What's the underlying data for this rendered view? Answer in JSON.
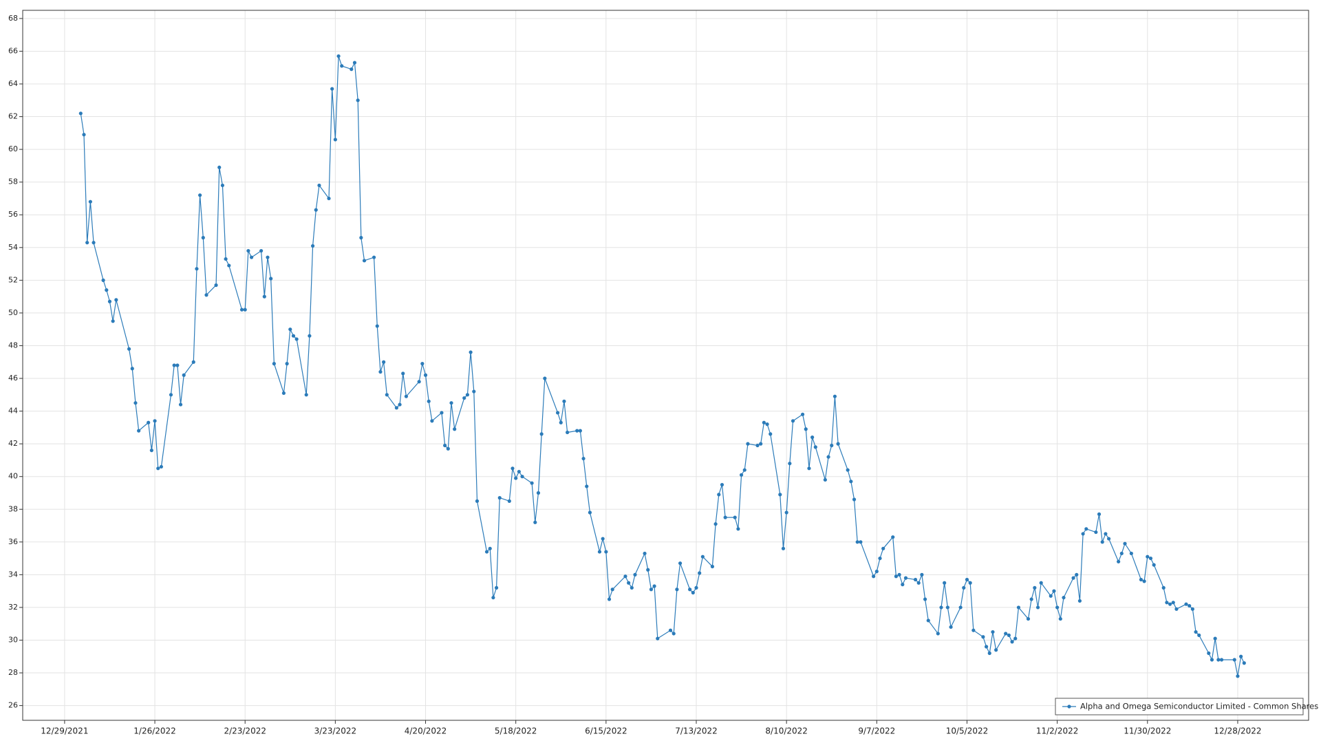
{
  "chart_data": {
    "type": "line",
    "x": [
      "1/3/2022",
      "1/4/2022",
      "1/5/2022",
      "1/6/2022",
      "1/7/2022",
      "1/10/2022",
      "1/11/2022",
      "1/12/2022",
      "1/13/2022",
      "1/14/2022",
      "1/18/2022",
      "1/19/2022",
      "1/20/2022",
      "1/21/2022",
      "1/24/2022",
      "1/25/2022",
      "1/26/2022",
      "1/27/2022",
      "1/28/2022",
      "1/31/2022",
      "2/1/2022",
      "2/2/2022",
      "2/3/2022",
      "2/4/2022",
      "2/7/2022",
      "2/8/2022",
      "2/9/2022",
      "2/10/2022",
      "2/11/2022",
      "2/14/2022",
      "2/15/2022",
      "2/16/2022",
      "2/17/2022",
      "2/18/2022",
      "2/22/2022",
      "2/23/2022",
      "2/24/2022",
      "2/25/2022",
      "2/28/2022",
      "3/1/2022",
      "3/2/2022",
      "3/3/2022",
      "3/4/2022",
      "3/7/2022",
      "3/8/2022",
      "3/9/2022",
      "3/10/2022",
      "3/11/2022",
      "3/14/2022",
      "3/15/2022",
      "3/16/2022",
      "3/17/2022",
      "3/18/2022",
      "3/21/2022",
      "3/22/2022",
      "3/23/2022",
      "3/24/2022",
      "3/25/2022",
      "3/28/2022",
      "3/29/2022",
      "3/30/2022",
      "3/31/2022",
      "4/1/2022",
      "4/4/2022",
      "4/5/2022",
      "4/6/2022",
      "4/7/2022",
      "4/8/2022",
      "4/11/2022",
      "4/12/2022",
      "4/13/2022",
      "4/14/2022",
      "4/18/2022",
      "4/19/2022",
      "4/20/2022",
      "4/21/2022",
      "4/22/2022",
      "4/25/2022",
      "4/26/2022",
      "4/27/2022",
      "4/28/2022",
      "4/29/2022",
      "5/2/2022",
      "5/3/2022",
      "5/4/2022",
      "5/5/2022",
      "5/6/2022",
      "5/9/2022",
      "5/10/2022",
      "5/11/2022",
      "5/12/2022",
      "5/13/2022",
      "5/16/2022",
      "5/17/2022",
      "5/18/2022",
      "5/19/2022",
      "5/20/2022",
      "5/23/2022",
      "5/24/2022",
      "5/25/2022",
      "5/26/2022",
      "5/27/2022",
      "5/31/2022",
      "6/1/2022",
      "6/2/2022",
      "6/3/2022",
      "6/6/2022",
      "6/7/2022",
      "6/8/2022",
      "6/9/2022",
      "6/10/2022",
      "6/13/2022",
      "6/14/2022",
      "6/15/2022",
      "6/16/2022",
      "6/17/2022",
      "6/21/2022",
      "6/22/2022",
      "6/23/2022",
      "6/24/2022",
      "6/27/2022",
      "6/28/2022",
      "6/29/2022",
      "6/30/2022",
      "7/1/2022",
      "7/5/2022",
      "7/6/2022",
      "7/7/2022",
      "7/8/2022",
      "7/11/2022",
      "7/12/2022",
      "7/13/2022",
      "7/14/2022",
      "7/15/2022",
      "7/18/2022",
      "7/19/2022",
      "7/20/2022",
      "7/21/2022",
      "7/22/2022",
      "7/25/2022",
      "7/26/2022",
      "7/27/2022",
      "7/28/2022",
      "7/29/2022",
      "8/1/2022",
      "8/2/2022",
      "8/3/2022",
      "8/4/2022",
      "8/5/2022",
      "8/8/2022",
      "8/9/2022",
      "8/10/2022",
      "8/11/2022",
      "8/12/2022",
      "8/15/2022",
      "8/16/2022",
      "8/17/2022",
      "8/18/2022",
      "8/19/2022",
      "8/22/2022",
      "8/23/2022",
      "8/24/2022",
      "8/25/2022",
      "8/26/2022",
      "8/29/2022",
      "8/30/2022",
      "8/31/2022",
      "9/1/2022",
      "9/2/2022",
      "9/6/2022",
      "9/7/2022",
      "9/8/2022",
      "9/9/2022",
      "9/12/2022",
      "9/13/2022",
      "9/14/2022",
      "9/15/2022",
      "9/16/2022",
      "9/19/2022",
      "9/20/2022",
      "9/21/2022",
      "9/22/2022",
      "9/23/2022",
      "9/26/2022",
      "9/27/2022",
      "9/28/2022",
      "9/29/2022",
      "9/30/2022",
      "10/3/2022",
      "10/4/2022",
      "10/5/2022",
      "10/6/2022",
      "10/7/2022",
      "10/10/2022",
      "10/11/2022",
      "10/12/2022",
      "10/13/2022",
      "10/14/2022",
      "10/17/2022",
      "10/18/2022",
      "10/19/2022",
      "10/20/2022",
      "10/21/2022",
      "10/24/2022",
      "10/25/2022",
      "10/26/2022",
      "10/27/2022",
      "10/28/2022",
      "10/31/2022",
      "11/1/2022",
      "11/2/2022",
      "11/3/2022",
      "11/4/2022",
      "11/7/2022",
      "11/8/2022",
      "11/9/2022",
      "11/10/2022",
      "11/11/2022",
      "11/14/2022",
      "11/15/2022",
      "11/16/2022",
      "11/17/2022",
      "11/18/2022",
      "11/21/2022",
      "11/22/2022",
      "11/23/2022",
      "11/25/2022",
      "11/28/2022",
      "11/29/2022",
      "11/30/2022",
      "12/1/2022",
      "12/2/2022",
      "12/5/2022",
      "12/6/2022",
      "12/7/2022",
      "12/8/2022",
      "12/9/2022",
      "12/12/2022",
      "12/13/2022",
      "12/14/2022",
      "12/15/2022",
      "12/16/2022",
      "12/19/2022",
      "12/20/2022",
      "12/21/2022",
      "12/22/2022",
      "12/23/2022",
      "12/27/2022",
      "12/28/2022",
      "12/29/2022",
      "12/30/2022"
    ],
    "series": [
      {
        "name": "Alpha and Omega Semiconductor Limited - Common Shares",
        "color": "#2b7bb9",
        "values": [
          62.2,
          60.9,
          54.3,
          56.8,
          54.3,
          52.0,
          51.4,
          50.7,
          49.5,
          50.8,
          47.8,
          46.6,
          44.5,
          42.8,
          43.3,
          41.6,
          43.4,
          40.5,
          40.6,
          45.0,
          46.8,
          46.8,
          44.4,
          46.2,
          47.0,
          52.7,
          57.2,
          54.6,
          51.1,
          51.7,
          58.9,
          57.8,
          53.3,
          52.9,
          50.2,
          50.2,
          53.8,
          53.4,
          53.8,
          51.0,
          53.4,
          52.1,
          46.9,
          45.1,
          46.9,
          49.0,
          48.6,
          48.4,
          45.0,
          48.6,
          54.1,
          56.3,
          57.8,
          57.0,
          63.7,
          60.6,
          65.7,
          65.1,
          64.9,
          65.3,
          63.0,
          54.6,
          53.2,
          53.4,
          49.2,
          46.4,
          47.0,
          45.0,
          44.2,
          44.4,
          46.3,
          44.9,
          45.8,
          46.9,
          46.2,
          44.6,
          43.4,
          43.9,
          41.9,
          41.7,
          44.5,
          42.9,
          44.8,
          45.0,
          47.6,
          45.2,
          38.5,
          35.4,
          35.6,
          32.6,
          33.2,
          38.7,
          38.5,
          40.5,
          39.9,
          40.3,
          40.0,
          39.6,
          37.2,
          39.0,
          42.6,
          46.0,
          43.9,
          43.3,
          44.6,
          42.7,
          42.8,
          42.8,
          41.1,
          39.4,
          37.8,
          35.4,
          36.2,
          35.4,
          32.5,
          33.1,
          33.9,
          33.5,
          33.2,
          34.0,
          35.3,
          34.3,
          33.1,
          33.3,
          30.1,
          30.6,
          30.4,
          33.1,
          34.7,
          33.1,
          32.9,
          33.2,
          34.1,
          35.1,
          34.5,
          37.1,
          38.9,
          39.5,
          37.5,
          37.5,
          36.8,
          40.1,
          40.4,
          42.0,
          41.9,
          42.0,
          43.3,
          43.2,
          42.6,
          38.9,
          35.6,
          37.8,
          40.8,
          43.4,
          43.8,
          42.9,
          40.5,
          42.4,
          41.8,
          39.8,
          41.2,
          41.9,
          44.9,
          42.0,
          40.4,
          39.7,
          38.6,
          36.0,
          36.0,
          33.9,
          34.2,
          35.0,
          35.6,
          36.3,
          33.9,
          34.0,
          33.4,
          33.8,
          33.7,
          33.5,
          34.0,
          32.5,
          31.2,
          30.4,
          32.0,
          33.5,
          32.0,
          30.8,
          32.0,
          33.2,
          33.7,
          33.5,
          30.6,
          30.2,
          29.6,
          29.2,
          30.5,
          29.4,
          30.4,
          30.3,
          29.9,
          30.1,
          32.0,
          31.3,
          32.5,
          33.2,
          32.0,
          33.5,
          32.7,
          33.0,
          32.0,
          31.3,
          32.6,
          33.8,
          34.0,
          32.4,
          36.5,
          36.8,
          36.6,
          37.7,
          36.0,
          36.5,
          36.2,
          34.8,
          35.3,
          35.9,
          35.3,
          33.7,
          33.6,
          35.1,
          35.0,
          34.6,
          33.2,
          32.3,
          32.2,
          32.3,
          31.9,
          32.2,
          32.1,
          31.9,
          30.5,
          30.3,
          29.2,
          28.8,
          30.1,
          28.8,
          28.8,
          28.8,
          27.8,
          29.0,
          28.6
        ]
      }
    ],
    "xlim": [
      "12/16/2021",
      "1/19/2023"
    ],
    "xticks": [
      "12/29/2021",
      "1/26/2022",
      "2/23/2022",
      "3/23/2022",
      "4/20/2022",
      "5/18/2022",
      "6/15/2022",
      "7/13/2022",
      "8/10/2022",
      "9/7/2022",
      "10/5/2022",
      "11/2/2022",
      "11/30/2022",
      "12/28/2022"
    ],
    "ylim": [
      25.1,
      68.5
    ],
    "yticks": [
      26,
      28,
      30,
      32,
      34,
      36,
      38,
      40,
      42,
      44,
      46,
      48,
      50,
      52,
      54,
      56,
      58,
      60,
      62,
      64,
      66,
      68
    ],
    "grid": true,
    "legend": "lower right"
  }
}
